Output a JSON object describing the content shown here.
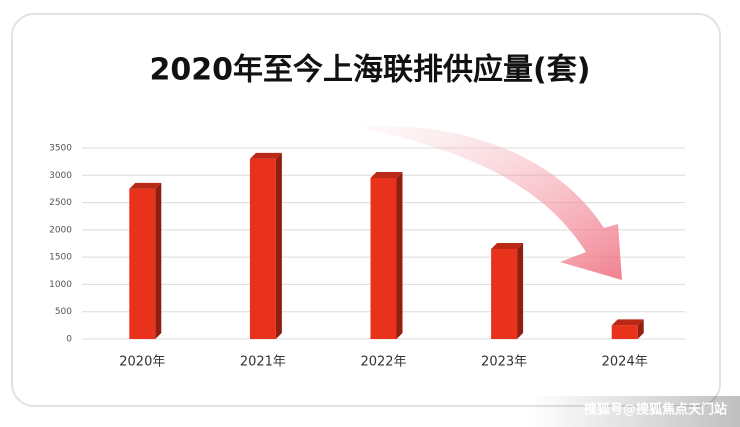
{
  "chart_data": {
    "type": "bar3d",
    "title": "2020年至今上海联排供应量(套)",
    "categories": [
      "2020年",
      "2021年",
      "2022年",
      "2023年",
      "2024年"
    ],
    "values": [
      2750,
      3300,
      2950,
      1650,
      250
    ],
    "color": "#e8321c",
    "ylim": [
      0,
      3500
    ],
    "yticks": [
      0,
      500,
      1000,
      1500,
      2000,
      2500,
      3000,
      3500
    ],
    "grid": true
  },
  "watermark": "搜狐号@搜狐焦点天门站"
}
